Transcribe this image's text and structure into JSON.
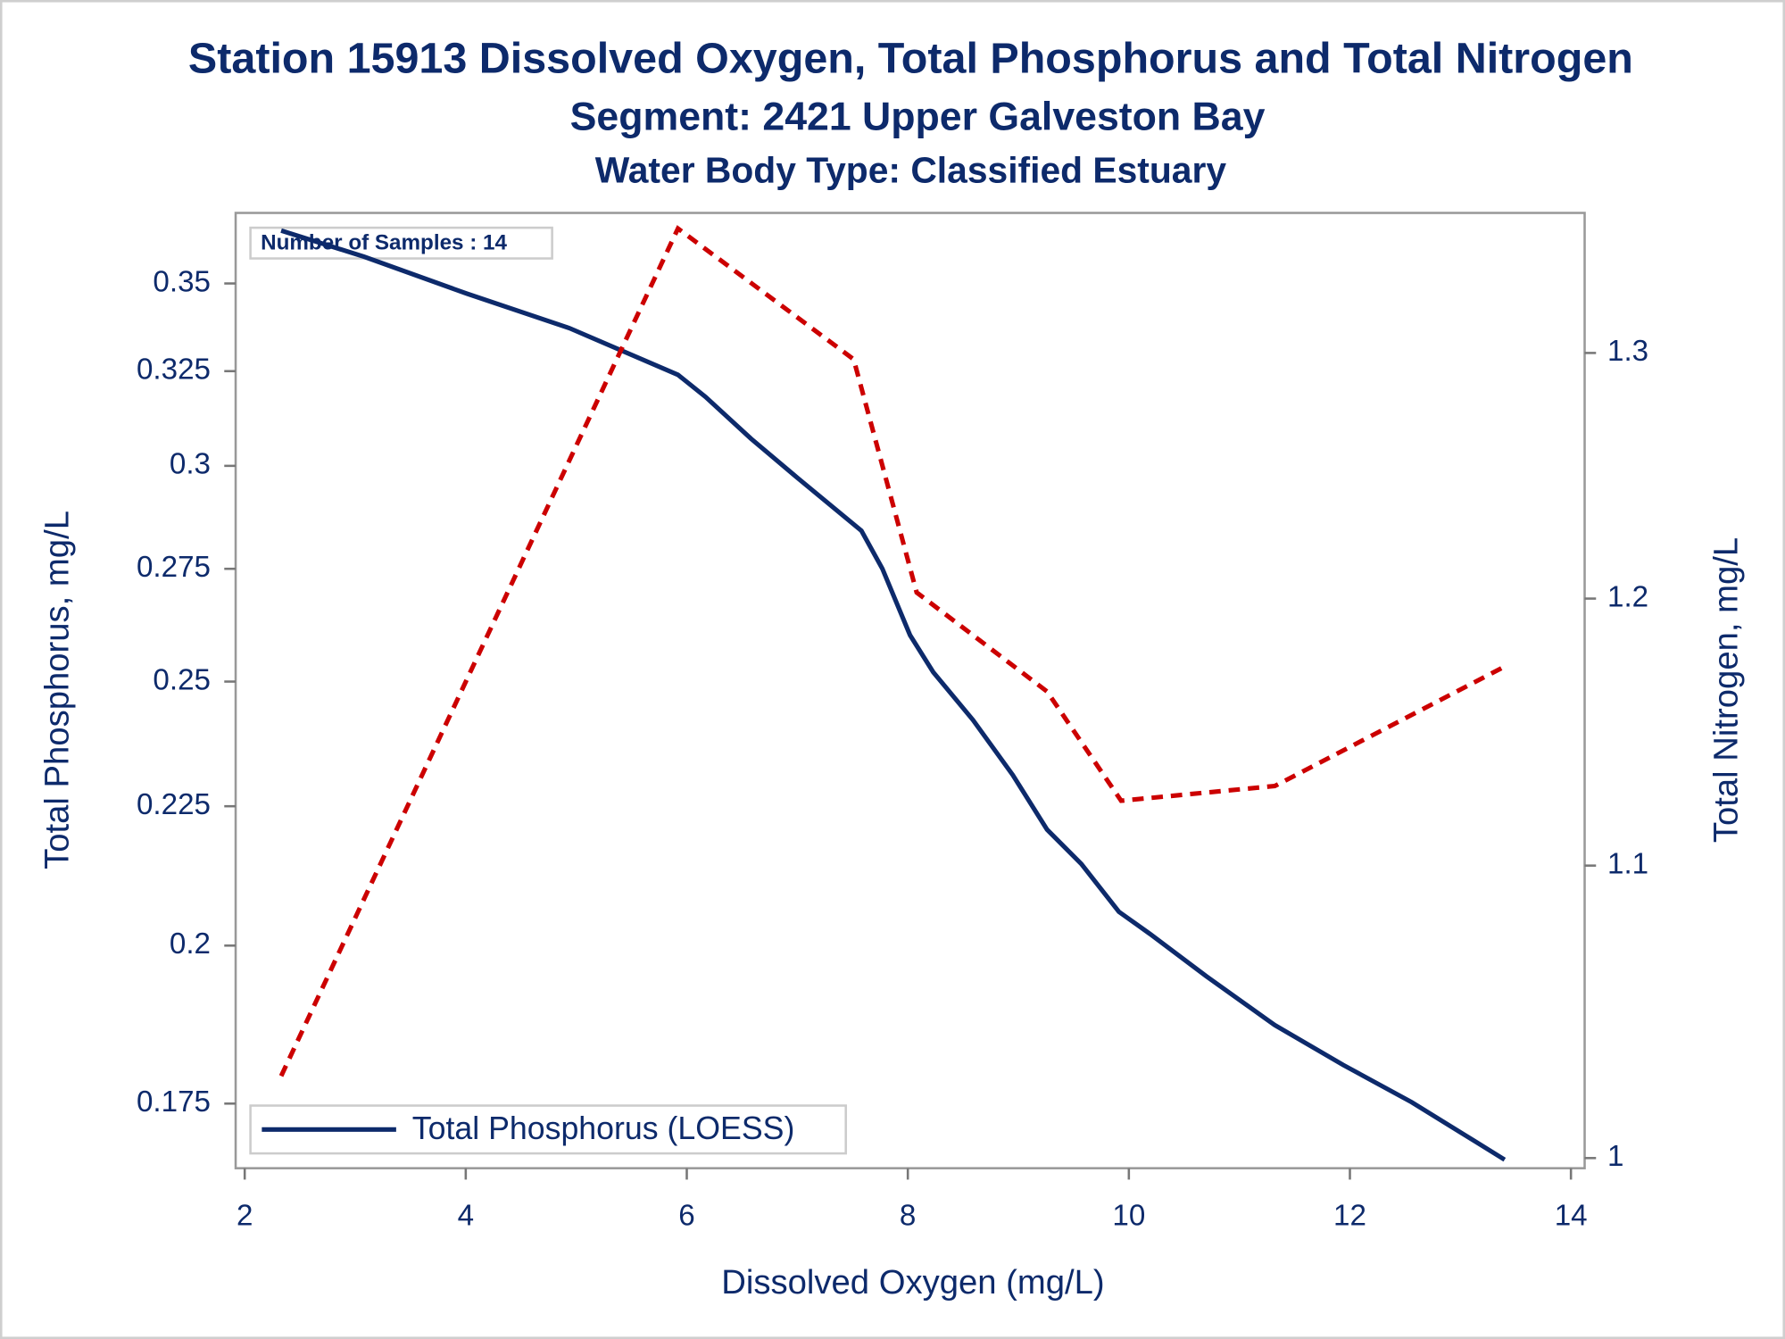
{
  "chart_data": {
    "type": "line",
    "title": "Station 15913  Dissolved Oxygen, Total Phosphorus and Total Nitrogen",
    "subtitle": "Segment: 2421  Upper Galveston Bay",
    "subtitle2": "Water Body Type: Classified Estuary",
    "annotation": "Number of Samples : 14",
    "x_label": "Dissolved Oxygen (mg/L)",
    "y_label": "Total Phosphorus, mg/L",
    "y2_label": "Total Nitrogen, mg/L",
    "xlim": [
      1.918,
      14.124
    ],
    "xticks": [
      2,
      4,
      6,
      8,
      10,
      12,
      14
    ],
    "ylim": [
      0.1657,
      0.3715
    ],
    "yscale": "log",
    "yticks": [
      0.175,
      0.2,
      0.225,
      0.25,
      0.275,
      0.3,
      0.325,
      0.35
    ],
    "y2lim": [
      0.9967,
      1.3607
    ],
    "y2scale": "log",
    "y2ticks": [
      1,
      1.1,
      1.2,
      1.3
    ],
    "legend": "lower left",
    "series": [
      {
        "name": "Total Phosphorus (LOESS)",
        "color": "#0d2a6b",
        "dash": "solid",
        "x": [
          2.33,
          3.08,
          4.01,
          4.94,
          5.92,
          6.17,
          6.58,
          7.0,
          7.58,
          7.77,
          8.02,
          8.23,
          8.59,
          8.95,
          9.26,
          9.57,
          9.91,
          10.19,
          10.7,
          11.32,
          11.94,
          12.56,
          13.4
        ],
        "values": [
          0.366,
          0.358,
          0.347,
          0.337,
          0.324,
          0.318,
          0.307,
          0.297,
          0.284,
          0.275,
          0.26,
          0.252,
          0.242,
          0.231,
          0.2206,
          0.2143,
          0.2058,
          0.202,
          0.1949,
          0.187,
          0.1808,
          0.1752,
          0.1669
        ]
      },
      {
        "color": "#cc0000",
        "dash": "dashed",
        "axis": "y2",
        "x": [
          2.33,
          5.92,
          7.51,
          8.08,
          9.26,
          9.93,
          11.32,
          13.4
        ],
        "values": [
          1.0271,
          1.3538,
          1.2973,
          1.2024,
          1.1642,
          1.1235,
          1.1289,
          1.1737
        ]
      }
    ]
  }
}
